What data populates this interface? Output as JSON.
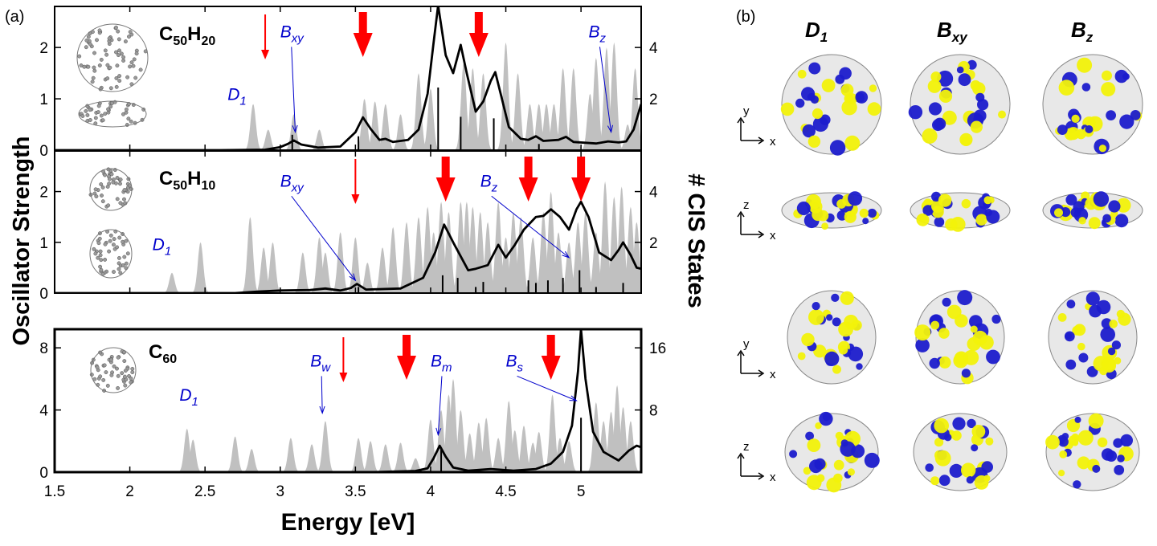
{
  "panel_a_label": "(a)",
  "panel_b_label": "(b)",
  "colors": {
    "states": "#c0c0c0",
    "spectrum": "#000000",
    "arrow": "#ff0000",
    "annotation": "#0000cc",
    "lobe_positive": "#1c1ccc",
    "lobe_negative": "#f2f20a"
  },
  "chart_data": {
    "type": "area",
    "xlabel": "Energy [eV]",
    "ylabel": "Oscillator Strength",
    "y2label": "# CIS States",
    "xlim": [
      1.5,
      5.4
    ],
    "xticks": [
      "1.5",
      "2",
      "2.5",
      "3",
      "3.5",
      "4",
      "4.5",
      "5"
    ],
    "xtick_values": [
      1.5,
      2,
      2.5,
      3,
      3.5,
      4,
      4.5,
      5
    ],
    "panels": [
      {
        "molecule": {
          "base": "C",
          "n1": "50",
          "mid": "H",
          "n2": "20"
        },
        "ylim": [
          0,
          2.8
        ],
        "yticks": [
          0,
          1,
          2
        ],
        "ytick_labels": [
          "0",
          "1",
          "2"
        ],
        "y2lim": [
          0,
          5.6
        ],
        "y2ticks": [
          2,
          4
        ],
        "y2tick_labels": [
          "2",
          "4"
        ],
        "spectrum": [
          [
            1.5,
            0.0
          ],
          [
            2.6,
            0.0
          ],
          [
            2.9,
            0.01
          ],
          [
            3.0,
            0.06
          ],
          [
            3.05,
            0.12
          ],
          [
            3.09,
            0.19
          ],
          [
            3.14,
            0.11
          ],
          [
            3.25,
            0.05
          ],
          [
            3.4,
            0.07
          ],
          [
            3.5,
            0.35
          ],
          [
            3.55,
            0.64
          ],
          [
            3.6,
            0.42
          ],
          [
            3.66,
            0.2
          ],
          [
            3.7,
            0.22
          ],
          [
            3.75,
            0.16
          ],
          [
            3.85,
            0.2
          ],
          [
            3.92,
            0.4
          ],
          [
            3.98,
            1.1
          ],
          [
            4.02,
            2.1
          ],
          [
            4.05,
            2.82
          ],
          [
            4.1,
            1.85
          ],
          [
            4.15,
            1.5
          ],
          [
            4.2,
            2.05
          ],
          [
            4.24,
            1.5
          ],
          [
            4.3,
            0.75
          ],
          [
            4.35,
            0.95
          ],
          [
            4.4,
            1.35
          ],
          [
            4.43,
            1.52
          ],
          [
            4.47,
            1.05
          ],
          [
            4.52,
            0.45
          ],
          [
            4.6,
            0.22
          ],
          [
            4.65,
            0.2
          ],
          [
            4.7,
            0.27
          ],
          [
            4.75,
            0.18
          ],
          [
            4.85,
            0.2
          ],
          [
            4.9,
            0.26
          ],
          [
            4.95,
            0.16
          ],
          [
            5.1,
            0.13
          ],
          [
            5.18,
            0.17
          ],
          [
            5.25,
            0.15
          ],
          [
            5.3,
            0.17
          ],
          [
            5.35,
            0.4
          ],
          [
            5.4,
            0.9
          ]
        ],
        "states": [
          [
            2.82,
            1.8
          ],
          [
            2.92,
            0.8
          ],
          [
            3.09,
            1.4
          ],
          [
            3.26,
            0.8
          ],
          [
            3.56,
            2.0
          ],
          [
            3.63,
            1.9
          ],
          [
            3.7,
            1.8
          ],
          [
            3.8,
            1.4
          ],
          [
            3.92,
            3.0
          ],
          [
            4.0,
            2.4
          ],
          [
            4.22,
            3.4
          ],
          [
            4.28,
            3.2
          ],
          [
            4.35,
            3.0
          ],
          [
            4.5,
            4.2
          ],
          [
            4.58,
            3.0
          ],
          [
            4.66,
            1.8
          ],
          [
            4.72,
            1.8
          ],
          [
            4.77,
            1.8
          ],
          [
            4.82,
            1.8
          ],
          [
            4.88,
            3.2
          ],
          [
            4.95,
            3.2
          ],
          [
            5.06,
            2.2
          ],
          [
            5.1,
            3.6
          ],
          [
            5.17,
            4.0
          ],
          [
            5.22,
            4.2
          ],
          [
            5.31,
            1.0
          ],
          [
            5.36,
            3.2
          ]
        ],
        "sticks": [
          [
            3.08,
            0.3
          ],
          [
            3.52,
            0.27
          ],
          [
            4.05,
            1.22
          ],
          [
            4.2,
            0.65
          ],
          [
            4.42,
            0.62
          ],
          [
            4.72,
            0.12
          ]
        ],
        "arrows": [
          {
            "e": 2.9,
            "big": false
          },
          {
            "e": 3.55,
            "big": true
          },
          {
            "e": 4.32,
            "big": true
          }
        ],
        "annotations": [
          {
            "base": "D",
            "sub": "1",
            "lx": 2.65,
            "ly": 0.98
          },
          {
            "base": "B",
            "sub": "xy",
            "lx": 3.0,
            "ly": 2.2,
            "ax": 3.1,
            "ay": 0.35
          },
          {
            "base": "B",
            "sub": "z",
            "lx": 5.05,
            "ly": 2.2,
            "ax": 5.2,
            "ay": 0.35
          }
        ]
      },
      {
        "molecule": {
          "base": "C",
          "n1": "50",
          "mid": "H",
          "n2": "10"
        },
        "ylim": [
          0,
          2.8
        ],
        "yticks": [
          0,
          1,
          2
        ],
        "ytick_labels": [
          "0",
          "1",
          "2"
        ],
        "y2lim": [
          0,
          5.6
        ],
        "y2ticks": [
          2,
          4
        ],
        "y2tick_labels": [
          "2",
          "4"
        ],
        "spectrum": [
          [
            1.5,
            0.0
          ],
          [
            2.7,
            0.0
          ],
          [
            2.85,
            0.03
          ],
          [
            3.0,
            0.05
          ],
          [
            3.2,
            0.06
          ],
          [
            3.3,
            0.09
          ],
          [
            3.4,
            0.05
          ],
          [
            3.47,
            0.1
          ],
          [
            3.51,
            0.18
          ],
          [
            3.57,
            0.07
          ],
          [
            3.8,
            0.09
          ],
          [
            3.95,
            0.3
          ],
          [
            4.03,
            0.8
          ],
          [
            4.09,
            1.35
          ],
          [
            4.15,
            1.0
          ],
          [
            4.25,
            0.45
          ],
          [
            4.3,
            0.48
          ],
          [
            4.38,
            0.55
          ],
          [
            4.45,
            0.95
          ],
          [
            4.5,
            0.7
          ],
          [
            4.56,
            0.95
          ],
          [
            4.62,
            1.25
          ],
          [
            4.7,
            1.5
          ],
          [
            4.75,
            1.52
          ],
          [
            4.8,
            1.65
          ],
          [
            4.86,
            1.5
          ],
          [
            4.92,
            1.25
          ],
          [
            4.97,
            1.65
          ],
          [
            5.0,
            1.8
          ],
          [
            5.05,
            1.5
          ],
          [
            5.12,
            0.8
          ],
          [
            5.2,
            0.65
          ],
          [
            5.25,
            0.85
          ],
          [
            5.28,
            1.0
          ],
          [
            5.33,
            0.75
          ],
          [
            5.37,
            0.5
          ],
          [
            5.4,
            0.48
          ]
        ],
        "states": [
          [
            2.28,
            0.8
          ],
          [
            2.47,
            2.0
          ],
          [
            2.8,
            3.0
          ],
          [
            2.89,
            1.8
          ],
          [
            2.95,
            2.0
          ],
          [
            3.15,
            1.6
          ],
          [
            3.26,
            2.2
          ],
          [
            3.3,
            1.6
          ],
          [
            3.4,
            2.4
          ],
          [
            3.5,
            2.2
          ],
          [
            3.58,
            1.2
          ],
          [
            3.68,
            1.8
          ],
          [
            3.75,
            2.6
          ],
          [
            3.84,
            2.8
          ],
          [
            3.92,
            3.0
          ],
          [
            3.98,
            3.4
          ],
          [
            4.02,
            2.4
          ],
          [
            4.07,
            3.6
          ],
          [
            4.12,
            3.2
          ],
          [
            4.2,
            3.6
          ],
          [
            4.24,
            3.6
          ],
          [
            4.28,
            3.4
          ],
          [
            4.33,
            3.2
          ],
          [
            4.38,
            2.8
          ],
          [
            4.45,
            3.6
          ],
          [
            4.5,
            2.2
          ],
          [
            4.55,
            3.2
          ],
          [
            4.6,
            3.0
          ],
          [
            4.68,
            2.2
          ],
          [
            4.75,
            3.2
          ],
          [
            4.8,
            4.0
          ],
          [
            4.85,
            2.4
          ],
          [
            4.92,
            2.0
          ],
          [
            4.98,
            2.8
          ],
          [
            5.03,
            3.2
          ],
          [
            5.1,
            2.4
          ],
          [
            5.16,
            4.4
          ],
          [
            5.22,
            3.8
          ],
          [
            5.27,
            4.2
          ],
          [
            5.33,
            3.4
          ],
          [
            5.37,
            2.8
          ]
        ],
        "sticks": [
          [
            3.52,
            0.12
          ],
          [
            4.08,
            0.35
          ],
          [
            4.18,
            0.3
          ],
          [
            4.3,
            0.12
          ],
          [
            4.35,
            0.22
          ],
          [
            4.65,
            0.25
          ],
          [
            4.7,
            0.2
          ],
          [
            4.78,
            0.25
          ],
          [
            4.88,
            0.3
          ],
          [
            4.99,
            0.45
          ],
          [
            5.1,
            0.12
          ],
          [
            5.28,
            0.2
          ]
        ],
        "arrows": [
          {
            "e": 3.5,
            "big": false
          },
          {
            "e": 4.1,
            "big": true
          },
          {
            "e": 4.65,
            "big": true
          },
          {
            "e": 5.0,
            "big": true
          }
        ],
        "annotations": [
          {
            "base": "D",
            "sub": "1",
            "lx": 2.15,
            "ly": 0.85
          },
          {
            "base": "B",
            "sub": "xy",
            "lx": 3.0,
            "ly": 2.1,
            "ax": 3.5,
            "ay": 0.25
          },
          {
            "base": "B",
            "sub": "z",
            "lx": 4.33,
            "ly": 2.1,
            "ax": 4.92,
            "ay": 0.7
          }
        ]
      },
      {
        "molecule": {
          "base": "C",
          "n1": "60",
          "mid": "",
          "n2": ""
        },
        "ylim": [
          0,
          9.2
        ],
        "yticks": [
          0,
          4,
          8
        ],
        "ytick_labels": [
          "0",
          "4",
          "8"
        ],
        "y2lim": [
          0,
          18.4
        ],
        "y2ticks": [
          8,
          16
        ],
        "y2tick_labels": [
          "8",
          "16"
        ],
        "spectrum": [
          [
            1.5,
            0.0
          ],
          [
            3.6,
            0.0
          ],
          [
            3.9,
            0.08
          ],
          [
            3.98,
            0.25
          ],
          [
            4.02,
            0.9
          ],
          [
            4.06,
            1.7
          ],
          [
            4.1,
            1.0
          ],
          [
            4.15,
            0.3
          ],
          [
            4.25,
            0.1
          ],
          [
            4.4,
            0.2
          ],
          [
            4.55,
            0.1
          ],
          [
            4.7,
            0.2
          ],
          [
            4.8,
            0.55
          ],
          [
            4.88,
            1.3
          ],
          [
            4.94,
            3.0
          ],
          [
            4.98,
            6.5
          ],
          [
            5.0,
            9.2
          ],
          [
            5.03,
            6.0
          ],
          [
            5.08,
            2.6
          ],
          [
            5.15,
            1.3
          ],
          [
            5.25,
            0.75
          ],
          [
            5.32,
            1.4
          ],
          [
            5.37,
            1.7
          ],
          [
            5.4,
            1.6
          ]
        ],
        "states": [
          [
            2.38,
            5.6
          ],
          [
            2.42,
            4.2
          ],
          [
            2.7,
            4.6
          ],
          [
            2.81,
            3.0
          ],
          [
            3.07,
            4.4
          ],
          [
            3.21,
            3.6
          ],
          [
            3.3,
            6.6
          ],
          [
            3.52,
            4.4
          ],
          [
            3.6,
            4.0
          ],
          [
            3.7,
            3.6
          ],
          [
            3.8,
            3.8
          ],
          [
            3.9,
            1.8
          ],
          [
            4.0,
            6.8
          ],
          [
            4.07,
            8.0
          ],
          [
            4.12,
            10.0
          ],
          [
            4.15,
            12.0
          ],
          [
            4.2,
            8.0
          ],
          [
            4.26,
            5.0
          ],
          [
            4.32,
            6.4
          ],
          [
            4.37,
            7.0
          ],
          [
            4.45,
            4.4
          ],
          [
            4.52,
            9.2
          ],
          [
            4.56,
            5.4
          ],
          [
            4.62,
            6.0
          ],
          [
            4.68,
            3.8
          ],
          [
            4.72,
            5.2
          ],
          [
            4.81,
            10.0
          ],
          [
            4.86,
            4.4
          ],
          [
            4.92,
            4.0
          ],
          [
            5.1,
            9.0
          ],
          [
            5.15,
            6.6
          ],
          [
            5.2,
            7.8
          ],
          [
            5.24,
            11.2
          ],
          [
            5.28,
            8.4
          ],
          [
            5.33,
            6.6
          ]
        ],
        "sticks": [
          [
            4.07,
            1.6
          ],
          [
            5.0,
            3.5
          ]
        ],
        "arrows": [
          {
            "e": 3.42,
            "big": false
          },
          {
            "e": 3.84,
            "big": true
          },
          {
            "e": 4.8,
            "big": true
          }
        ],
        "annotations": [
          {
            "base": "D",
            "sub": "1",
            "lx": 2.33,
            "ly": 4.6
          },
          {
            "base": "B",
            "sub": "w",
            "lx": 3.2,
            "ly": 6.8,
            "ax": 3.28,
            "ay": 3.8
          },
          {
            "base": "B",
            "sub": "m",
            "lx": 4.0,
            "ly": 6.8,
            "ax": 4.05,
            "ay": 2.4
          },
          {
            "base": "B",
            "sub": "s",
            "lx": 4.5,
            "ly": 6.8,
            "ax": 4.97,
            "ay": 4.6
          }
        ]
      }
    ]
  },
  "orbitals": {
    "columns": [
      {
        "base": "D",
        "sub": "1"
      },
      {
        "base": "B",
        "sub": "xy"
      },
      {
        "base": "B",
        "sub": "z"
      }
    ],
    "axis_y": "y",
    "axis_x": "x",
    "axis_z": "z"
  }
}
